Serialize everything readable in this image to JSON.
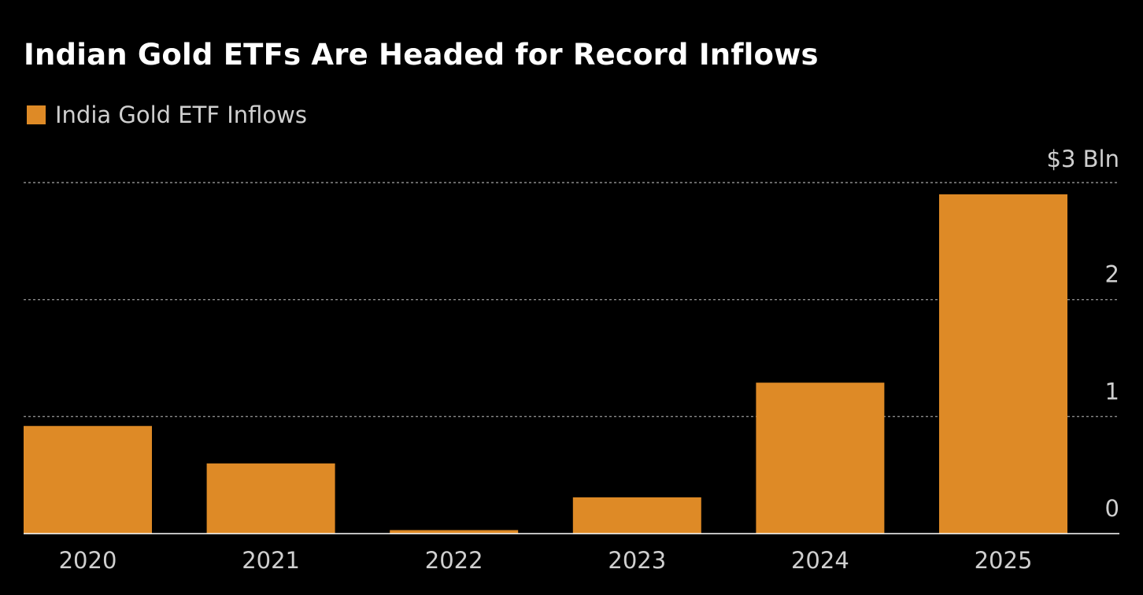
{
  "chart_data": {
    "type": "bar",
    "title": "Indian Gold ETFs Are Headed for Record Inflows",
    "categories": [
      "2020",
      "2021",
      "2022",
      "2023",
      "2024",
      "2025"
    ],
    "series": [
      {
        "name": "India Gold ETF Inflows",
        "values": [
          0.92,
          0.6,
          0.03,
          0.31,
          1.29,
          2.9
        ],
        "color": "#de8a26"
      }
    ],
    "ylim": [
      0,
      3
    ],
    "yticks": [
      {
        "value": 0,
        "label": "0"
      },
      {
        "value": 1,
        "label": "1"
      },
      {
        "value": 2,
        "label": "2"
      },
      {
        "value": 3,
        "label": "$3 Bln"
      }
    ],
    "xlabel": "",
    "ylabel": "",
    "grid": true,
    "legend": "top-left",
    "background": "#000000",
    "gridline_color": "#8a8a8a",
    "axis_color": "#ffffff"
  }
}
